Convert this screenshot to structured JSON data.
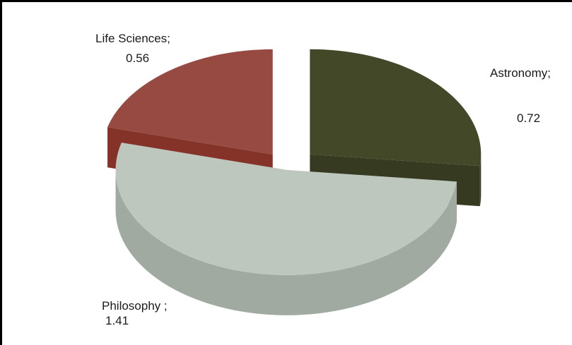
{
  "chart_data": {
    "type": "pie",
    "categories": [
      "Astronomy",
      "Philosophy",
      "Life Sciences"
    ],
    "values": [
      0.72,
      1.41,
      0.56
    ],
    "colors": {
      "Astronomy": {
        "top": "#424828",
        "side": "#353a20"
      },
      "Philosophy": {
        "top": "#bec7be",
        "side": "#a1aaa1"
      },
      "Life Sciences": {
        "top": "#974a41",
        "side": "#853329"
      }
    },
    "style": "3d-exploded",
    "labels": [
      {
        "name": "Astronomy;",
        "value": "0.72"
      },
      {
        "name": "Philosophy ;",
        "value": "1.41"
      },
      {
        "name": "Life Sciences;",
        "value": "0.56"
      }
    ],
    "title": "",
    "legend": "none"
  }
}
